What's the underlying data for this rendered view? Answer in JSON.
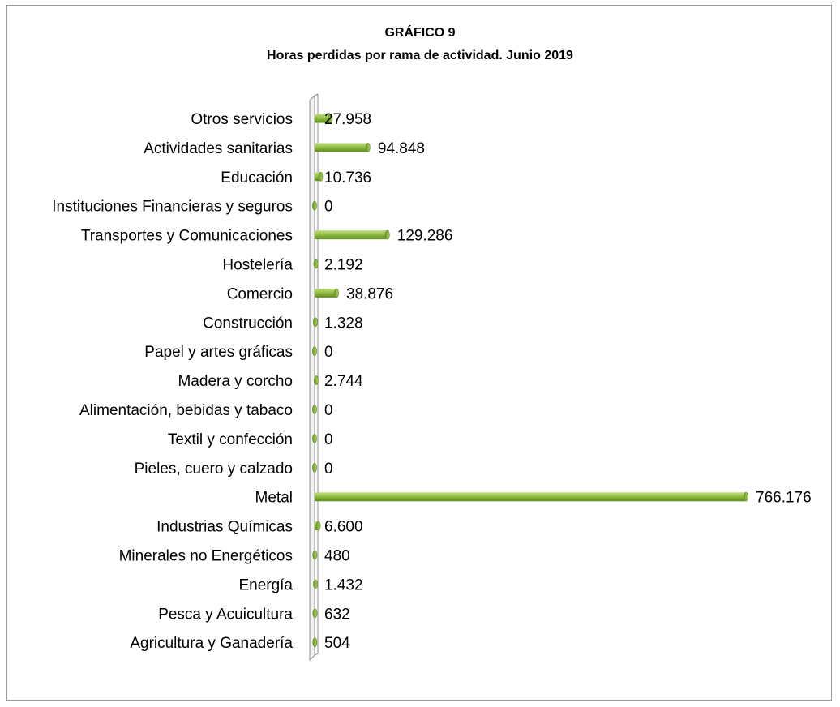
{
  "chart_data": {
    "type": "bar",
    "orientation": "horizontal",
    "title": "GRÁFICO 9",
    "subtitle": "Horas perdidas por rama de actividad. Junio 2019",
    "bar_color": "#8fbc3f",
    "categories": [
      "Otros servicios",
      "Actividades sanitarias",
      "Educación",
      "Instituciones Financieras y seguros",
      "Transportes y Comunicaciones",
      "Hostelería",
      "Comercio",
      "Construcción",
      "Papel y artes gráficas",
      "Madera y corcho",
      "Alimentación, bebidas y tabaco",
      "Textil y confección",
      "Pieles, cuero y calzado",
      "Metal",
      "Industrias Químicas",
      "Minerales no Energéticos",
      "Energía",
      "Pesca y Acuicultura",
      "Agricultura y Ganadería"
    ],
    "values": [
      27958,
      94848,
      10736,
      0,
      129286,
      2192,
      38876,
      1328,
      0,
      2744,
      0,
      0,
      0,
      766176,
      6600,
      480,
      1432,
      632,
      504
    ],
    "value_labels": [
      "27.958",
      "94.848",
      "10.736",
      "0",
      "129.286",
      "2.192",
      "38.876",
      "1.328",
      "0",
      "2.744",
      "0",
      "0",
      "0",
      "766.176",
      "6.600",
      "480",
      "1.432",
      "632",
      "504"
    ],
    "xlim": [
      0,
      766176
    ],
    "grid": false,
    "legend": "none"
  }
}
